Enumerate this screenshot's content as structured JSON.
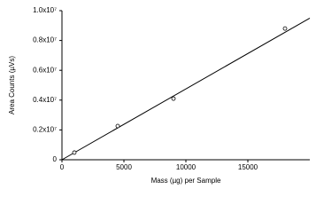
{
  "chart_data": {
    "type": "scatter",
    "x_label": "Mass (µg) per Sample",
    "y_label": "Area Counts (µVs)",
    "x": [
      1000,
      4500,
      9000,
      18000
    ],
    "values": [
      480000,
      2260000,
      4100000,
      8800000
    ],
    "trendline": {
      "x": [
        0,
        20000
      ],
      "y": [
        0,
        9500000
      ]
    },
    "xlim": [
      0,
      20000
    ],
    "ylim": [
      0,
      10000000
    ],
    "xticks": [
      0,
      5000,
      10000,
      15000
    ],
    "yticks": [
      0,
      {
        "value": 2000000,
        "label": "0.2x10⁷"
      },
      {
        "value": 4000000,
        "label": "0.4x10⁷"
      },
      {
        "value": 6000000,
        "label": "0.6x10⁷"
      },
      {
        "value": 8000000,
        "label": "0.8x10⁷"
      },
      {
        "value": 10000000,
        "label": "1.0x10⁷"
      }
    ],
    "color": "#000000"
  }
}
